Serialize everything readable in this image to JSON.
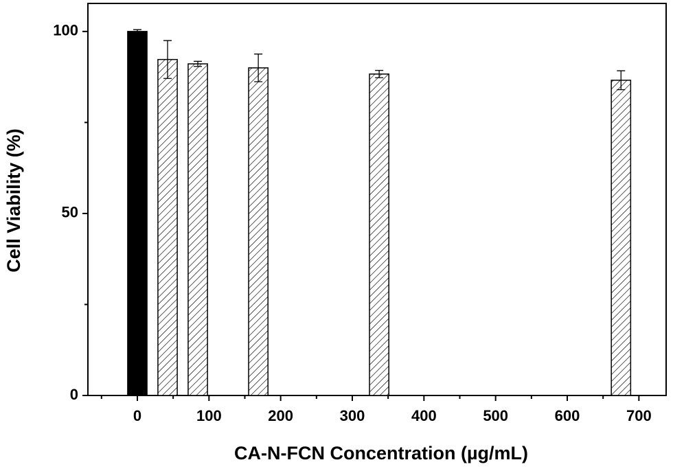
{
  "chart_data": {
    "type": "bar",
    "x_label": "CA-N-FCN Concentration (µg/mL)",
    "y_label": "Cell Viability (%)",
    "x": [
      0,
      42.2,
      84.4,
      168.8,
      337.5,
      675
    ],
    "values": [
      100,
      92.3,
      91.1,
      90,
      88.3,
      86.6
    ],
    "errors": [
      0.5,
      5.2,
      0.7,
      3.8,
      1,
      2.6
    ],
    "bar_styles": [
      "solid",
      "hatched",
      "hatched",
      "hatched",
      "hatched",
      "hatched"
    ],
    "color": "#000000",
    "bar_width": 27,
    "xlim": [
      -69,
      738
    ],
    "ylim": [
      0,
      107.7
    ],
    "xticks": [
      0,
      100,
      200,
      300,
      400,
      500,
      600,
      700
    ],
    "yticks": [
      0,
      50,
      100
    ],
    "xminorticks": [
      -50,
      50,
      150,
      250,
      350,
      450,
      550,
      650
    ],
    "yminorticks": [
      25,
      75
    ],
    "grid": false
  }
}
